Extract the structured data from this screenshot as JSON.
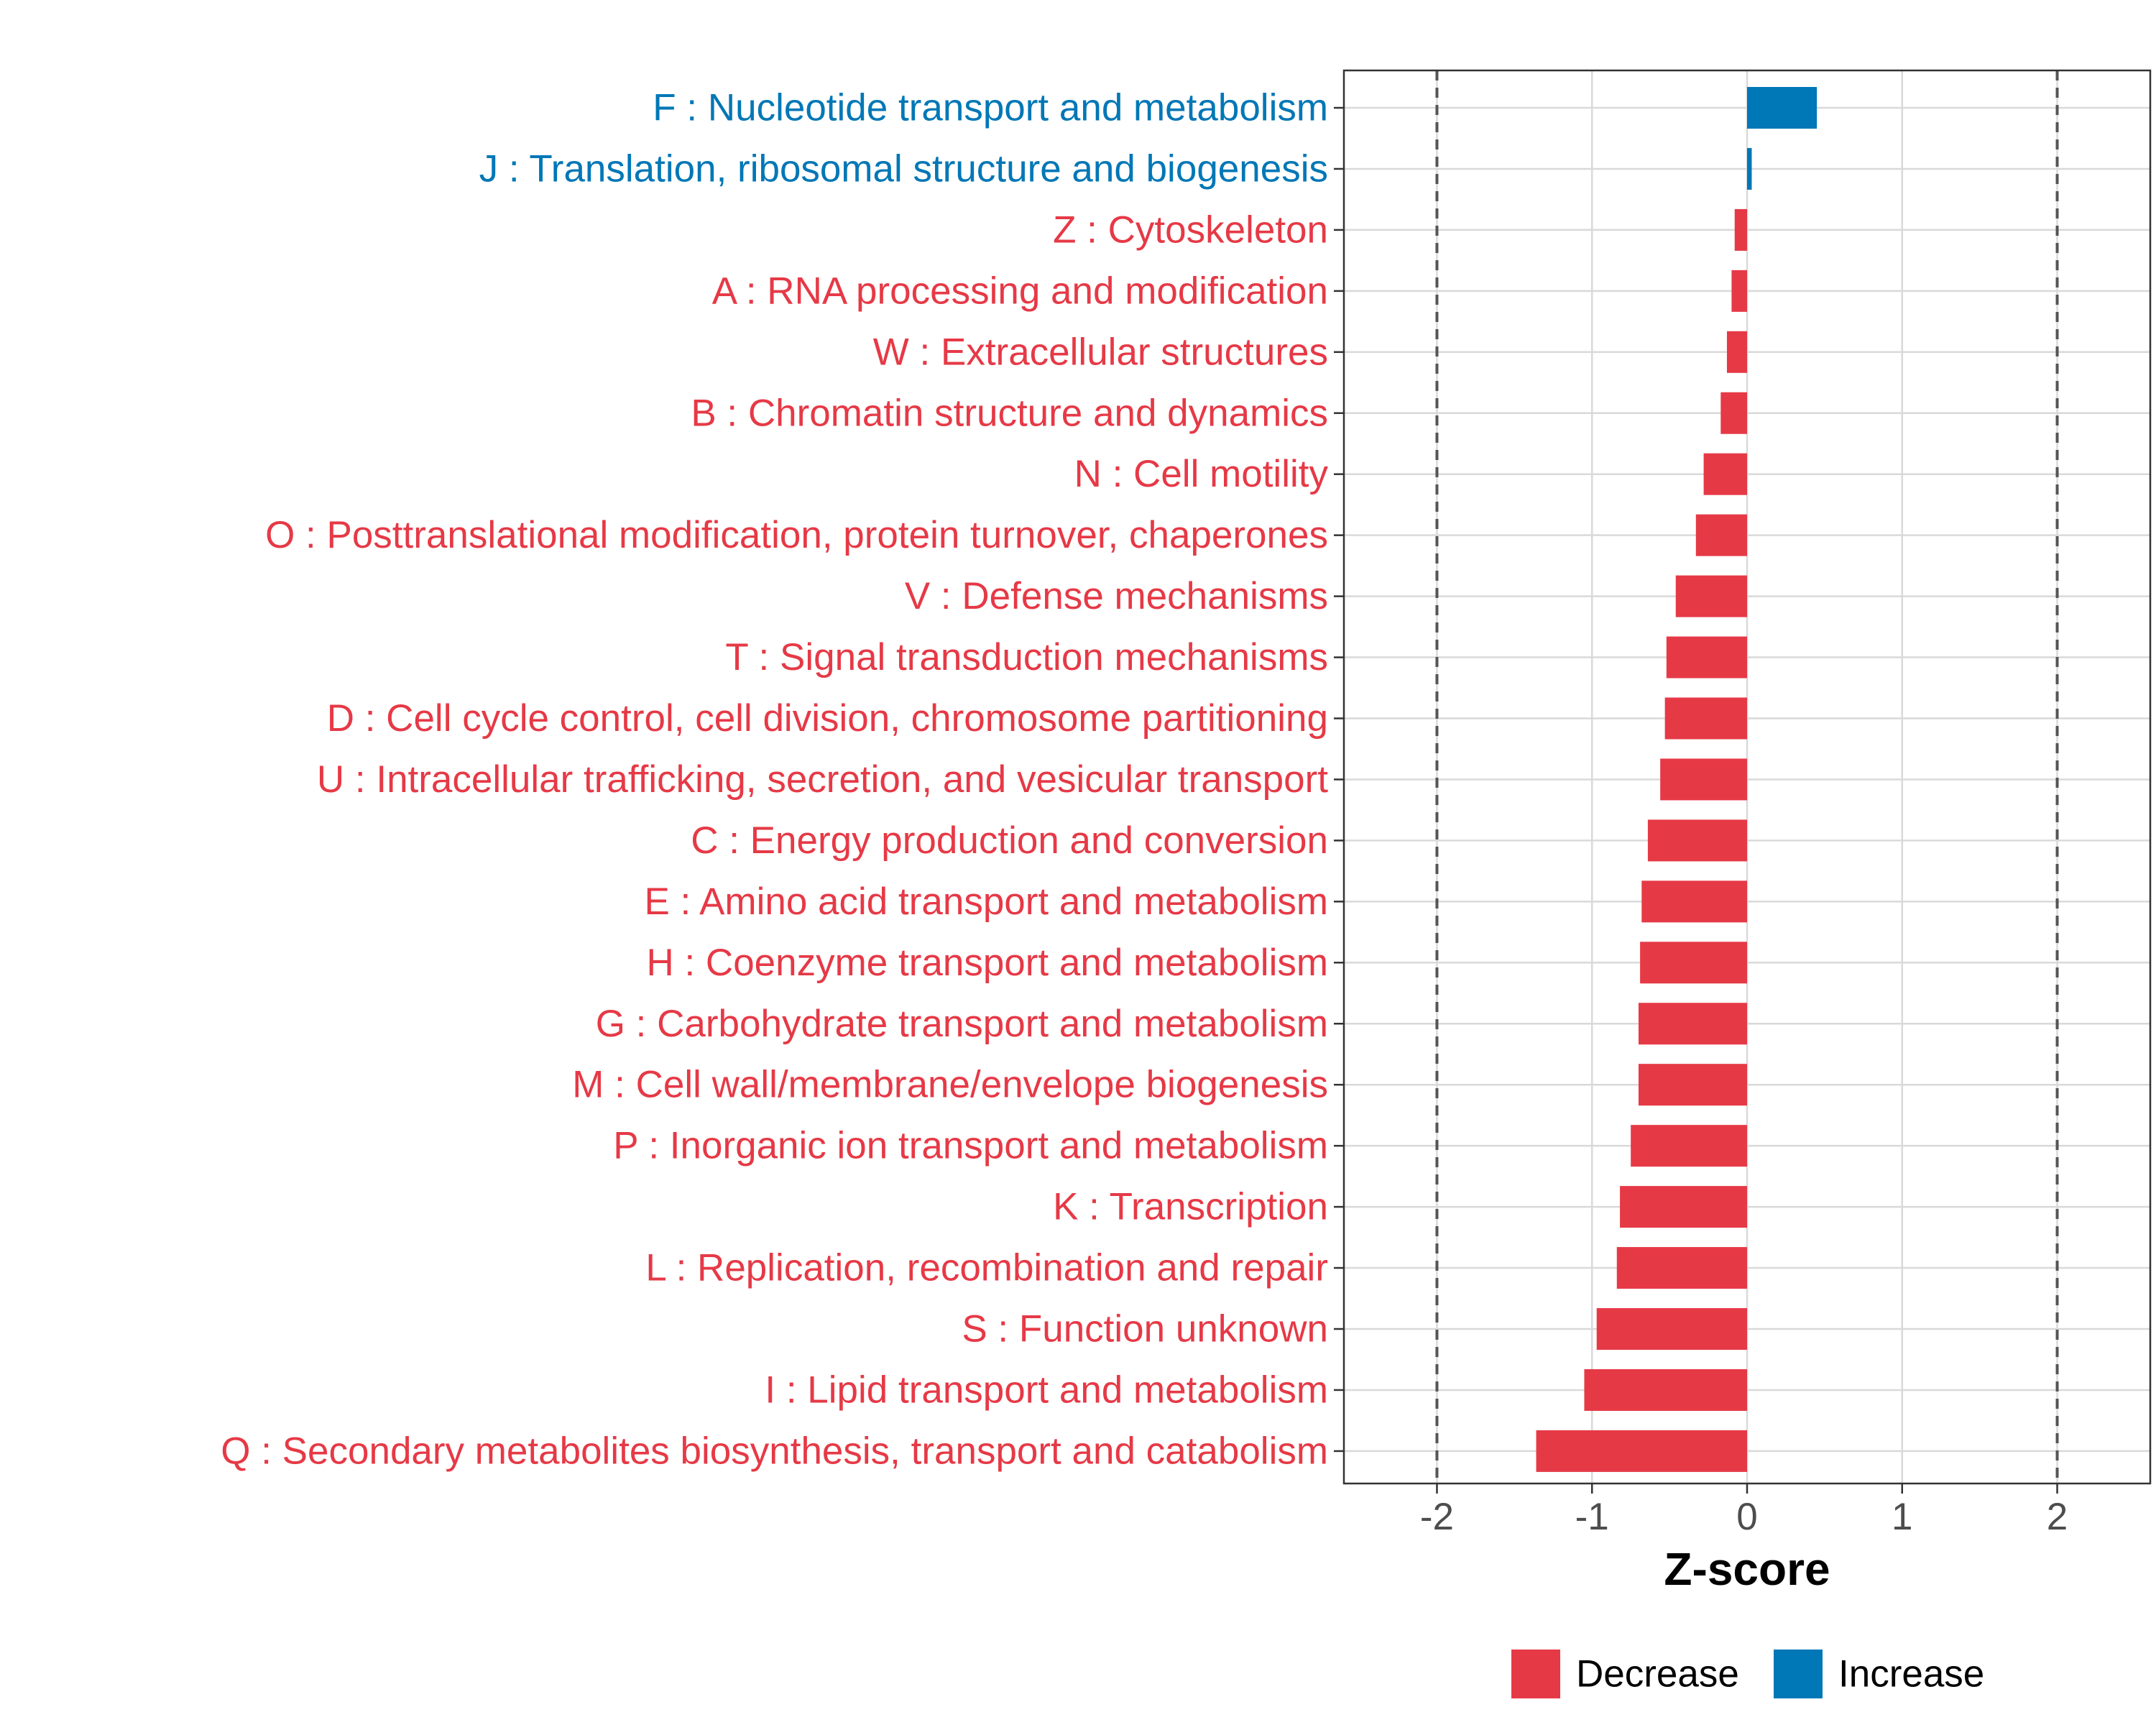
{
  "colors": {
    "decrease": "#E63946",
    "increase": "#0077B6",
    "grid": "#D9D9D9",
    "axis_text": "#4D4D4D",
    "threshold_line": "#555555"
  },
  "chart_data": {
    "type": "bar",
    "orientation": "horizontal",
    "title": "",
    "xlabel": "Z-score",
    "ylabel": "",
    "xlim": [
      -2.6,
      2.6
    ],
    "xticks": [
      -2,
      -1,
      0,
      1,
      2
    ],
    "xtick_labels": [
      "-2",
      "-1",
      "0",
      "1",
      "2"
    ],
    "threshold_lines": [
      -2,
      2
    ],
    "grid": true,
    "legend_position": "bottom",
    "legend": [
      {
        "name": "Decrease",
        "color_key": "decrease"
      },
      {
        "name": "Increase",
        "color_key": "increase"
      }
    ],
    "categories": [
      "F : Nucleotide transport and metabolism",
      "J : Translation, ribosomal structure and biogenesis",
      "Z : Cytoskeleton",
      "A : RNA processing and modification",
      "W : Extracellular structures",
      "B : Chromatin structure and dynamics",
      "N : Cell motility",
      "O : Posttranslational modification, protein turnover, chaperones",
      "V : Defense mechanisms",
      "T : Signal transduction mechanisms",
      "D : Cell cycle control, cell division, chromosome partitioning",
      "U : Intracellular trafficking, secretion, and vesicular transport",
      "C : Energy production and conversion",
      "E : Amino acid transport and metabolism",
      "H : Coenzyme transport and metabolism",
      "G : Carbohydrate transport and metabolism",
      "M : Cell wall/membrane/envelope biogenesis",
      "P : Inorganic ion transport and metabolism",
      "K : Transcription",
      "L : Replication, recombination and repair",
      "S : Function unknown",
      "I : Lipid transport and metabolism",
      "Q : Secondary metabolites biosynthesis, transport and catabolism"
    ],
    "values": [
      0.45,
      0.03,
      -0.08,
      -0.1,
      -0.13,
      -0.17,
      -0.28,
      -0.33,
      -0.46,
      -0.52,
      -0.53,
      -0.56,
      -0.64,
      -0.68,
      -0.69,
      -0.7,
      -0.7,
      -0.75,
      -0.82,
      -0.84,
      -0.97,
      -1.05,
      -1.36
    ],
    "groups": [
      "Increase",
      "Increase",
      "Decrease",
      "Decrease",
      "Decrease",
      "Decrease",
      "Decrease",
      "Decrease",
      "Decrease",
      "Decrease",
      "Decrease",
      "Decrease",
      "Decrease",
      "Decrease",
      "Decrease",
      "Decrease",
      "Decrease",
      "Decrease",
      "Decrease",
      "Decrease",
      "Decrease",
      "Decrease",
      "Decrease"
    ]
  }
}
